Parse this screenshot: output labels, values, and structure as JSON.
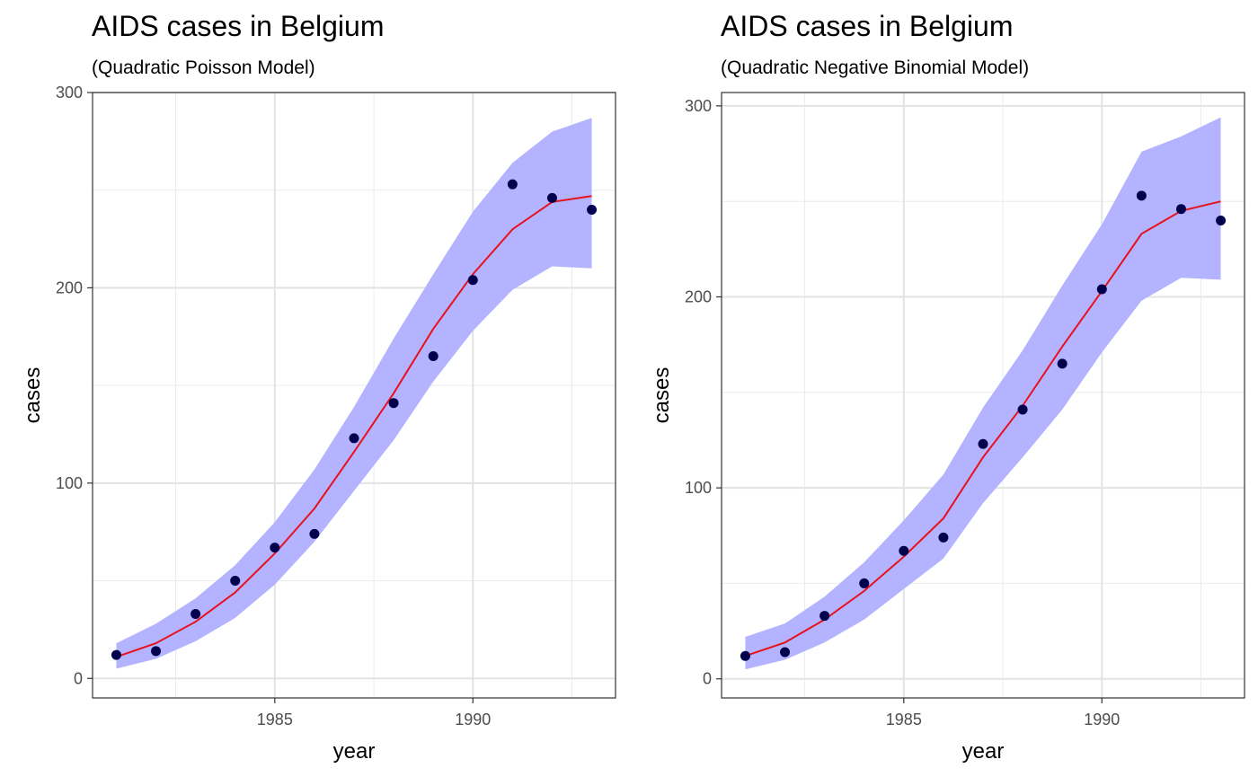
{
  "chart_data": [
    {
      "type": "line",
      "title": "AIDS cases in Belgium",
      "subtitle": "(Quadratic Poisson Model)",
      "xlabel": "year",
      "ylabel": "cases",
      "xlim": [
        1980.4,
        1993.6
      ],
      "ylim": [
        -10,
        300
      ],
      "xticks": [
        1985,
        1990
      ],
      "yticks": [
        0,
        100,
        200,
        300
      ],
      "xtick_labels": [
        "1985",
        "1990"
      ],
      "ytick_labels": [
        "0",
        "100",
        "200",
        "300"
      ],
      "x_minor": [
        1982.5,
        1987.5,
        1992.5
      ],
      "y_minor": [
        50,
        150,
        250
      ],
      "grid": true,
      "colors": {
        "band": "#b3b3ff",
        "line": "#e8111c",
        "points": "#00004d"
      },
      "x": [
        1981,
        1982,
        1983,
        1984,
        1985,
        1986,
        1987,
        1988,
        1989,
        1990,
        1991,
        1992,
        1993
      ],
      "series": [
        {
          "kind": "points",
          "values": [
            12,
            14,
            33,
            50,
            67,
            74,
            123,
            141,
            165,
            204,
            253,
            246,
            240
          ]
        },
        {
          "kind": "line",
          "values": [
            11,
            18,
            29,
            44,
            64,
            87,
            116,
            146,
            179,
            207,
            230,
            244,
            247
          ]
        },
        {
          "kind": "band",
          "lower": [
            5,
            10,
            19,
            31,
            48,
            70,
            96,
            122,
            152,
            178,
            199,
            211,
            210
          ],
          "upper": [
            18,
            28,
            41,
            58,
            80,
            107,
            139,
            174,
            207,
            239,
            264,
            280,
            287
          ]
        }
      ]
    },
    {
      "type": "line",
      "title": "AIDS cases in Belgium",
      "subtitle": "(Quadratic Negative Binomial Model)",
      "xlabel": "year",
      "ylabel": "cases",
      "xlim": [
        1980.4,
        1993.6
      ],
      "ylim": [
        -10,
        307
      ],
      "xticks": [
        1985,
        1990
      ],
      "yticks": [
        0,
        100,
        200,
        300
      ],
      "xtick_labels": [
        "1985",
        "1990"
      ],
      "ytick_labels": [
        "0",
        "100",
        "200",
        "300"
      ],
      "x_minor": [
        1982.5,
        1987.5,
        1992.5
      ],
      "y_minor": [
        50,
        150,
        250
      ],
      "grid": true,
      "colors": {
        "band": "#b3b3ff",
        "line": "#e8111c",
        "points": "#00004d"
      },
      "x": [
        1981,
        1982,
        1983,
        1984,
        1985,
        1986,
        1987,
        1988,
        1989,
        1990,
        1991,
        1992,
        1993
      ],
      "series": [
        {
          "kind": "points",
          "values": [
            12,
            14,
            33,
            50,
            67,
            74,
            123,
            141,
            165,
            204,
            253,
            246,
            240
          ]
        },
        {
          "kind": "line",
          "values": [
            12,
            19,
            31,
            46,
            64,
            84,
            116,
            143,
            174,
            203,
            233,
            245,
            250
          ]
        },
        {
          "kind": "band",
          "lower": [
            5,
            10,
            19,
            31,
            47,
            63,
            92,
            116,
            141,
            171,
            198,
            210,
            209
          ],
          "upper": [
            22,
            29,
            43,
            61,
            83,
            107,
            142,
            172,
            206,
            238,
            276,
            284,
            294
          ]
        }
      ]
    }
  ]
}
